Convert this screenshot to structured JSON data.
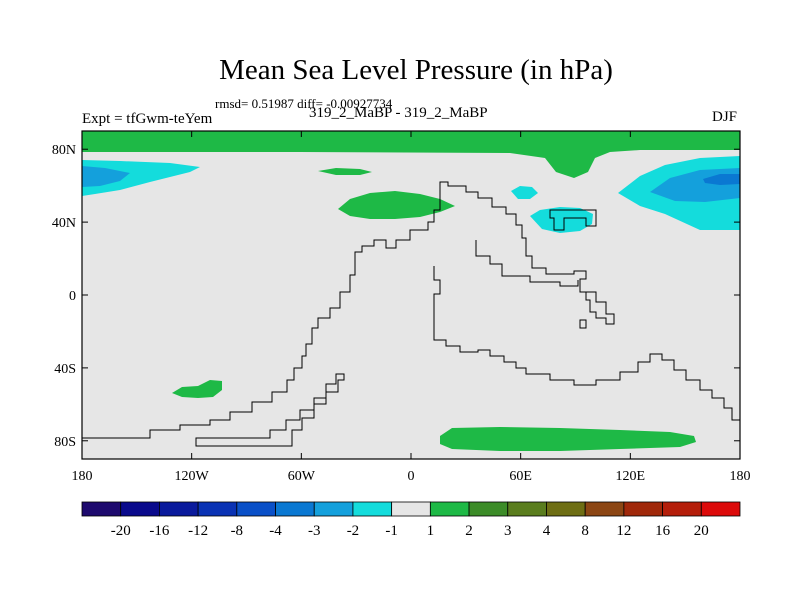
{
  "header": {
    "title": "Mean Sea Level Pressure (in hPa)",
    "stats": "rmsd= 0.51987 diff= -0.00927734",
    "experiment": "Expt = tfGwm-teYem",
    "subtitle": "319_2_MaBP - 319_2_MaBP",
    "season": "DJF"
  },
  "chart_data": {
    "type": "heatmap",
    "title": "Mean Sea Level Pressure (in hPa)",
    "xlabel": "",
    "ylabel": "",
    "x_range": [
      -180,
      180
    ],
    "y_range": [
      -90,
      90
    ],
    "x_ticks": [
      {
        "value": -180,
        "label": "180"
      },
      {
        "value": -120,
        "label": "120W"
      },
      {
        "value": -60,
        "label": "60W"
      },
      {
        "value": 0,
        "label": "0"
      },
      {
        "value": 60,
        "label": "60E"
      },
      {
        "value": 120,
        "label": "120E"
      },
      {
        "value": 180,
        "label": "180"
      }
    ],
    "y_ticks": [
      {
        "value": 80,
        "label": "80N"
      },
      {
        "value": 40,
        "label": "40N"
      },
      {
        "value": 0,
        "label": "0"
      },
      {
        "value": -40,
        "label": "40S"
      },
      {
        "value": -80,
        "label": "80S"
      }
    ],
    "background_class": "-1 to 1",
    "colorbar": {
      "labels": [
        "-20",
        "-16",
        "-12",
        "-8",
        "-4",
        "-3",
        "-2",
        "-1",
        "1",
        "2",
        "3",
        "4",
        "8",
        "12",
        "16",
        "20"
      ],
      "colors": [
        "#1e0a6e",
        "#0a0a8c",
        "#0a1a9c",
        "#0a32b4",
        "#0a50c8",
        "#0a78d2",
        "#14a0dc",
        "#14dcdc",
        "#e6e6e6",
        "#1eb946",
        "#3c8c28",
        "#5a7d1e",
        "#6e6e14",
        "#8c4614",
        "#a0280a",
        "#b41e0a",
        "#dc0a0a"
      ]
    },
    "anomalies": [
      {
        "name": "arctic band",
        "lon": [
          -180,
          180
        ],
        "lat": [
          73,
          90
        ],
        "class": "1 to 2"
      },
      {
        "name": "north pacific dip",
        "lon": [
          -180,
          -125
        ],
        "lat": [
          50,
          72
        ],
        "class": "-1 to -2"
      },
      {
        "name": "north pacific core",
        "lon": [
          -180,
          -165
        ],
        "lat": [
          55,
          65
        ],
        "class": "-2 to -3"
      },
      {
        "name": "north atlantic",
        "lon": [
          -40,
          8
        ],
        "lat": [
          40,
          54
        ],
        "class": "1 to 2"
      },
      {
        "name": "central asia small",
        "lon": [
          55,
          70
        ],
        "lat": [
          52,
          58
        ],
        "class": "-1 to -2"
      },
      {
        "name": "central asia",
        "lon": [
          65,
          100
        ],
        "lat": [
          35,
          50
        ],
        "class": "-1 to -2"
      },
      {
        "name": "north pacific east",
        "lon": [
          115,
          180
        ],
        "lat": [
          47,
          73
        ],
        "class": "-1 to -2"
      },
      {
        "name": "north pacific east core",
        "lon": [
          135,
          180
        ],
        "lat": [
          55,
          67
        ],
        "class": "-2 to -3"
      },
      {
        "name": "south pacific",
        "lon": [
          -130,
          -100
        ],
        "lat": [
          -60,
          -48
        ],
        "class": "1 to 2"
      },
      {
        "name": "southern ocean",
        "lon": [
          15,
          155
        ],
        "lat": [
          -86,
          -73
        ],
        "class": "1 to 2"
      }
    ]
  }
}
